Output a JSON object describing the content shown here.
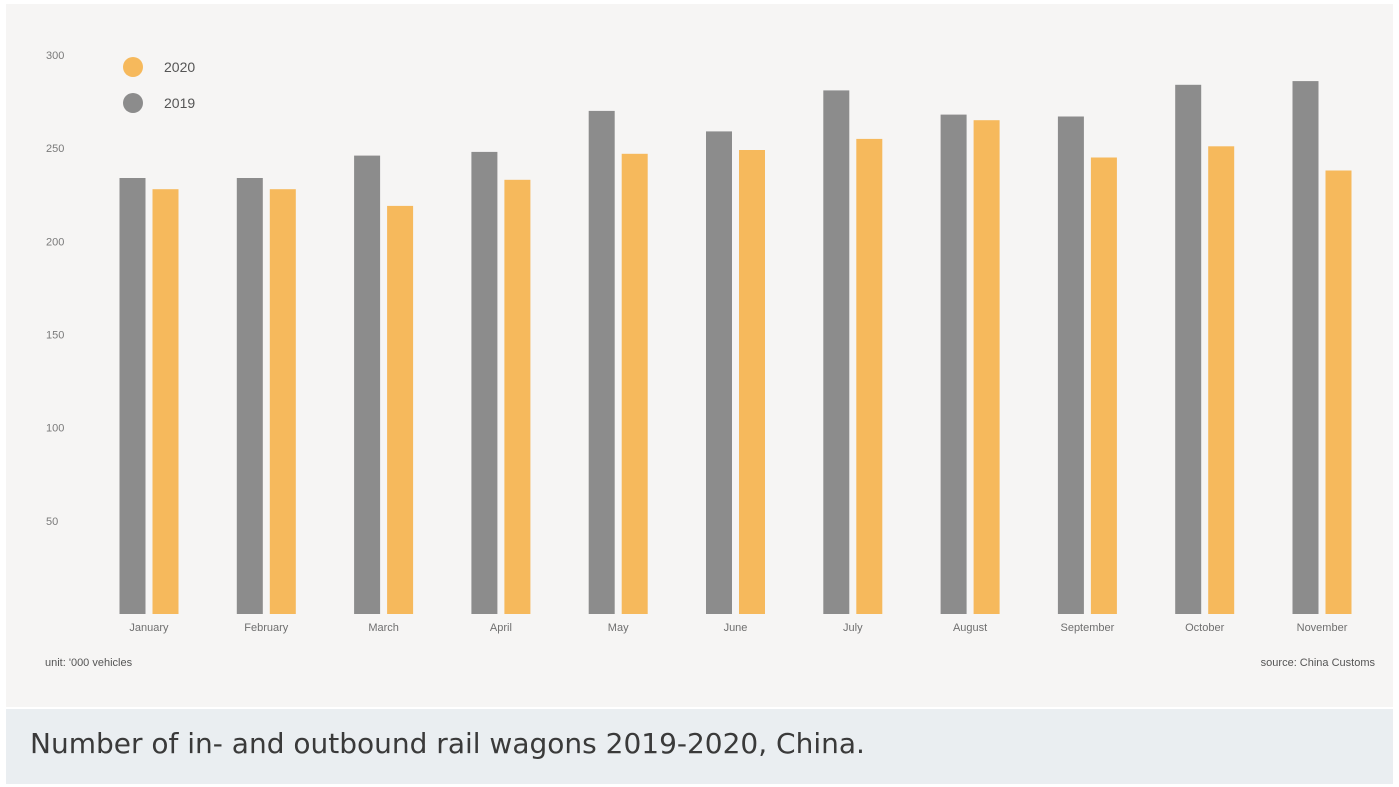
{
  "chart_data": {
    "type": "bar",
    "categories": [
      "January",
      "February",
      "March",
      "April",
      "May",
      "June",
      "July",
      "August",
      "September",
      "October",
      "November"
    ],
    "series": [
      {
        "name": "2019",
        "color": "#8c8c8c",
        "values": [
          234,
          234,
          246,
          248,
          270,
          259,
          281,
          268,
          267,
          284,
          286
        ]
      },
      {
        "name": "2020",
        "color": "#f6b95c",
        "values": [
          228,
          228,
          219,
          233,
          247,
          249,
          255,
          265,
          245,
          251,
          238
        ]
      }
    ],
    "yticks": [
      50,
      100,
      150,
      200,
      250,
      300
    ],
    "ylim": [
      0,
      300
    ],
    "legend": {
      "placement": "top-left",
      "order": [
        "2020",
        "2019"
      ]
    },
    "grid": false,
    "unit_note": "unit: '000 vehicles",
    "source_note": "source: China Customs"
  },
  "caption": "Number of in- and outbound rail wagons 2019-2020, China."
}
